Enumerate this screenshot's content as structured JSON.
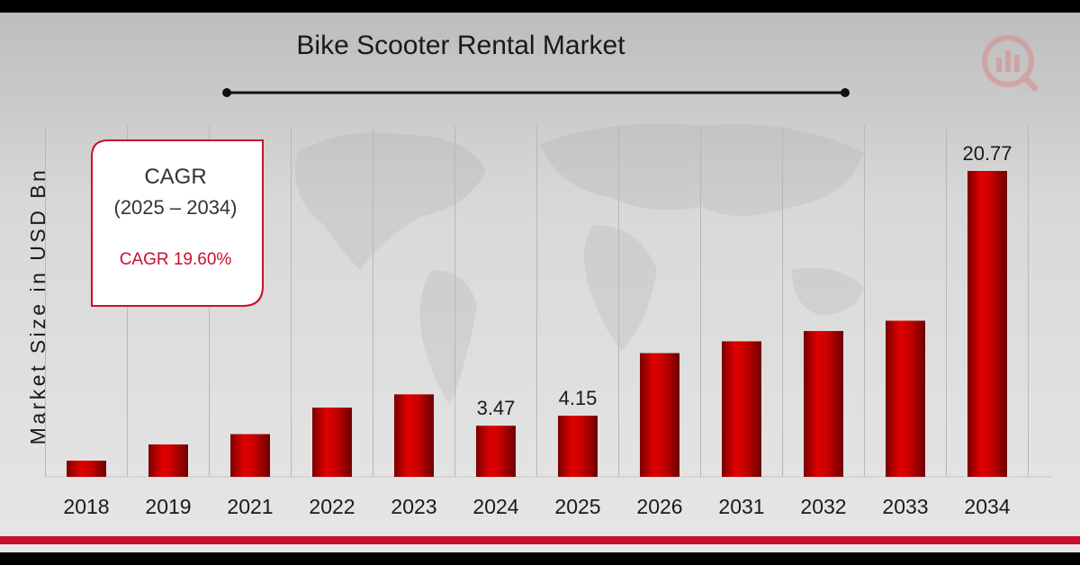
{
  "title": "Bike Scooter Rental Market",
  "cagr_box": {
    "heading": "CAGR",
    "period": "(2025 – 2034)",
    "value_text": "CAGR 19.60%"
  },
  "colors": {
    "bar": "#c00000",
    "accent_red": "#c8102e",
    "background": "#dcdcdc"
  },
  "logo_icon": "market-research-logo-icon",
  "chart_data": {
    "type": "bar",
    "title": "Bike Scooter Rental Market",
    "xlabel": "",
    "ylabel": "Market Size in USD Bn",
    "categories": [
      "2018",
      "2019",
      "2021",
      "2022",
      "2023",
      "2024",
      "2025",
      "2026",
      "2031",
      "2032",
      "2033",
      "2034"
    ],
    "values": [
      1.1,
      2.2,
      2.9,
      4.7,
      5.6,
      3.47,
      4.15,
      8.4,
      9.2,
      9.9,
      10.6,
      20.77
    ],
    "data_labels": {
      "2024": "3.47",
      "2025": "4.15",
      "2034": "20.77"
    },
    "legend": null,
    "grid": "vertical"
  }
}
